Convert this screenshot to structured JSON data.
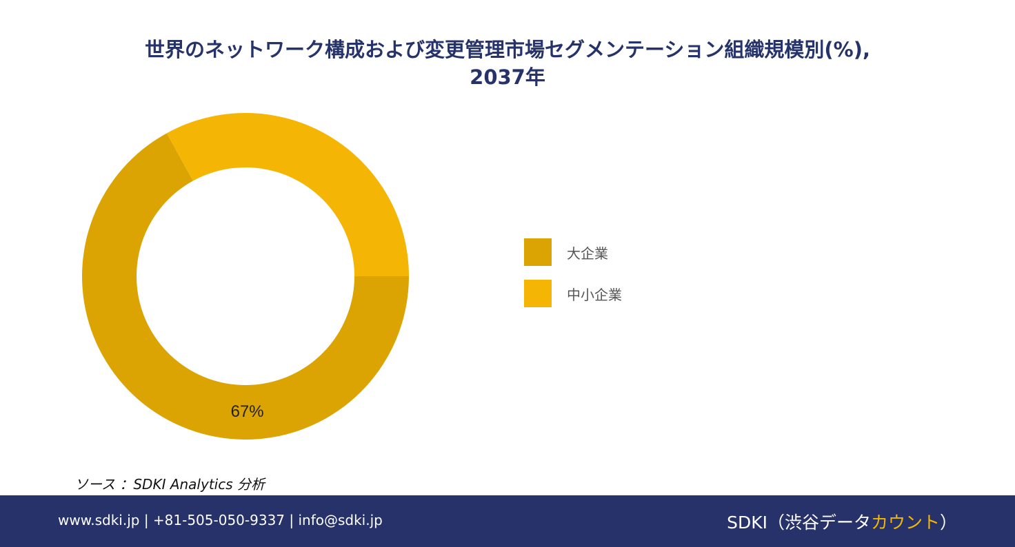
{
  "title": {
    "line1": "世界のネットワーク構成および変更管理市場セグメンテーション組織規模別(%),",
    "line2": "2037年"
  },
  "chart_data": {
    "type": "pie",
    "variant": "donut",
    "categories": [
      "大企業",
      "中小企業"
    ],
    "values": [
      67,
      33
    ],
    "colors": [
      "#dba402",
      "#f4b504"
    ],
    "data_labels": [
      "67%",
      ""
    ],
    "legend_placement": "right"
  },
  "source": "ソース ：SDKI Analytics 分析",
  "footer": {
    "contact": "www.sdki.jp | +81-505-050-9337 | info@sdki.jp",
    "brand_main": "SDKI（渋谷データ",
    "brand_accent": "カウント",
    "brand_close": "）",
    "accent_color": "#f2b705",
    "background": "#27326b"
  }
}
